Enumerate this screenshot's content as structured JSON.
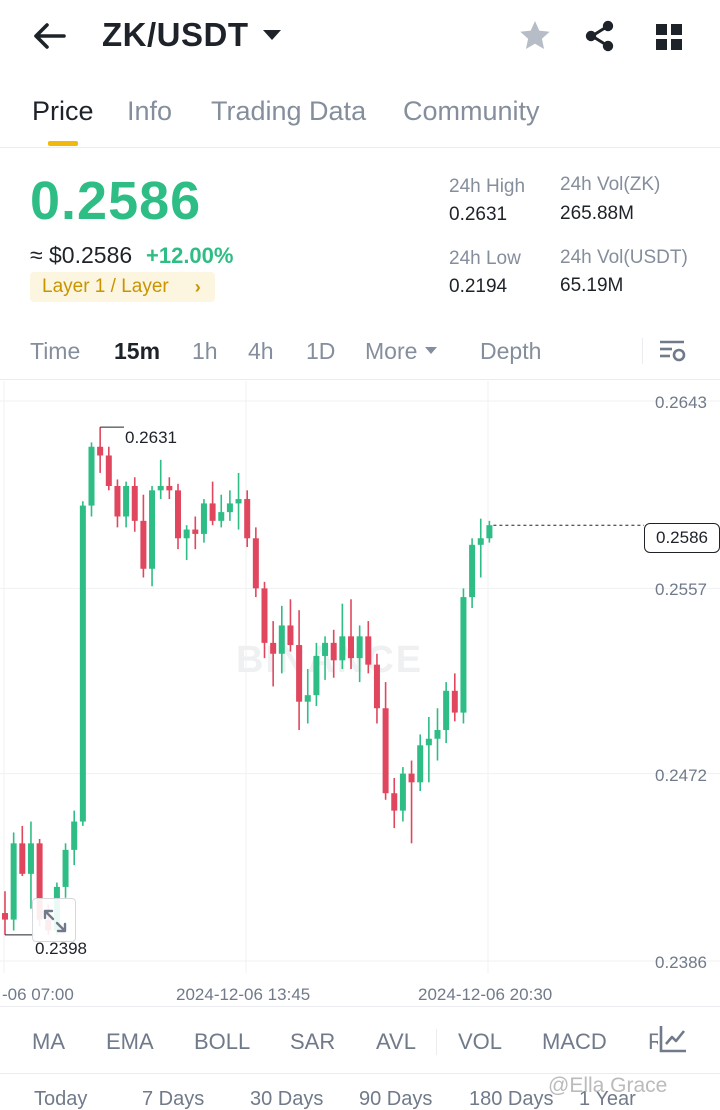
{
  "header": {
    "pair": "ZK/USDT",
    "icons": [
      "back-arrow-icon",
      "caret-down-icon",
      "star-icon",
      "share-icon",
      "grid-icon"
    ]
  },
  "tabs": [
    {
      "label": "Price",
      "active": true
    },
    {
      "label": "Info",
      "active": false
    },
    {
      "label": "Trading Data",
      "active": false
    },
    {
      "label": "Community",
      "active": false
    }
  ],
  "price": {
    "last": "0.2586",
    "usd": "≈ $0.2586",
    "change": "+12.00%",
    "tag": "Layer 1 / Layer",
    "tag_chevron": "›"
  },
  "stats": {
    "high_label": "24h High",
    "high_value": "0.2631",
    "low_label": "24h Low",
    "low_value": "0.2194",
    "vol_base_label": "24h Vol(ZK)",
    "vol_base_value": "265.88M",
    "vol_quote_label": "24h Vol(USDT)",
    "vol_quote_value": "65.19M"
  },
  "timebar": {
    "items": [
      {
        "label": "Time",
        "active": false
      },
      {
        "label": "15m",
        "active": true
      },
      {
        "label": "1h",
        "active": false
      },
      {
        "label": "4h",
        "active": false
      },
      {
        "label": "1D",
        "active": false
      },
      {
        "label": "More",
        "active": false
      },
      {
        "label": "Depth",
        "active": false
      }
    ]
  },
  "chart": {
    "y_labels": [
      "0.2643",
      "0.2557",
      "0.2472",
      "0.2386"
    ],
    "last_price": "0.2586",
    "high_marker": "0.2631",
    "low_marker": "0.2398",
    "watermark": "BINANCE",
    "x_labels": [
      "-06 07:00",
      "2024-12-06 13:45",
      "2024-12-06 20:30"
    ],
    "colors": {
      "up": "#2ebd85",
      "down": "#e0475e"
    }
  },
  "chart_data": {
    "type": "candlestick",
    "interval": "15m",
    "ylim": [
      0.2386,
      0.2643
    ],
    "ohlc": [
      [
        0.2408,
        0.2418,
        0.2398,
        0.2405
      ],
      [
        0.2405,
        0.2445,
        0.24,
        0.244
      ],
      [
        0.244,
        0.2448,
        0.2425,
        0.2426
      ],
      [
        0.2426,
        0.245,
        0.241,
        0.244
      ],
      [
        0.244,
        0.2442,
        0.2402,
        0.2405
      ],
      [
        0.2405,
        0.2412,
        0.2398,
        0.24
      ],
      [
        0.24,
        0.2422,
        0.2398,
        0.242
      ],
      [
        0.242,
        0.244,
        0.2415,
        0.2437
      ],
      [
        0.2437,
        0.2455,
        0.243,
        0.245
      ],
      [
        0.245,
        0.2597,
        0.2448,
        0.2595
      ],
      [
        0.2595,
        0.2624,
        0.259,
        0.2622
      ],
      [
        0.2622,
        0.2631,
        0.261,
        0.2618
      ],
      [
        0.2618,
        0.2622,
        0.2602,
        0.2604
      ],
      [
        0.2604,
        0.2607,
        0.2585,
        0.259
      ],
      [
        0.259,
        0.2606,
        0.2585,
        0.2604
      ],
      [
        0.2604,
        0.2608,
        0.2583,
        0.2588
      ],
      [
        0.2588,
        0.26,
        0.2562,
        0.2566
      ],
      [
        0.2566,
        0.2604,
        0.2558,
        0.2602
      ],
      [
        0.2602,
        0.2616,
        0.2598,
        0.2604
      ],
      [
        0.2604,
        0.2608,
        0.2598,
        0.2602
      ],
      [
        0.2602,
        0.2605,
        0.2575,
        0.258
      ],
      [
        0.258,
        0.2586,
        0.257,
        0.2584
      ],
      [
        0.2584,
        0.259,
        0.2575,
        0.2582
      ],
      [
        0.2582,
        0.2598,
        0.2578,
        0.2596
      ],
      [
        0.2596,
        0.2606,
        0.2586,
        0.2588
      ],
      [
        0.2588,
        0.26,
        0.2585,
        0.2592
      ],
      [
        0.2592,
        0.2602,
        0.2588,
        0.2596
      ],
      [
        0.2596,
        0.261,
        0.2584,
        0.2598
      ],
      [
        0.2598,
        0.2602,
        0.2576,
        0.258
      ],
      [
        0.258,
        0.2585,
        0.2553,
        0.2557
      ],
      [
        0.2557,
        0.256,
        0.2525,
        0.2532
      ],
      [
        0.2532,
        0.2542,
        0.2512,
        0.2527
      ],
      [
        0.2527,
        0.2549,
        0.2518,
        0.254
      ],
      [
        0.254,
        0.2552,
        0.2528,
        0.2531
      ],
      [
        0.2531,
        0.2547,
        0.2492,
        0.2505
      ],
      [
        0.2505,
        0.252,
        0.2495,
        0.2508
      ],
      [
        0.2508,
        0.2532,
        0.2503,
        0.2526
      ],
      [
        0.2526,
        0.2535,
        0.2515,
        0.2532
      ],
      [
        0.2532,
        0.2538,
        0.2516,
        0.2524
      ],
      [
        0.2524,
        0.255,
        0.252,
        0.2535
      ],
      [
        0.2535,
        0.2552,
        0.252,
        0.2525
      ],
      [
        0.2525,
        0.254,
        0.2514,
        0.2535
      ],
      [
        0.2535,
        0.2542,
        0.2518,
        0.2522
      ],
      [
        0.2522,
        0.2527,
        0.2495,
        0.2502
      ],
      [
        0.2502,
        0.2514,
        0.246,
        0.2463
      ],
      [
        0.2463,
        0.247,
        0.2447,
        0.2455
      ],
      [
        0.2455,
        0.2475,
        0.245,
        0.2472
      ],
      [
        0.2472,
        0.2478,
        0.244,
        0.2468
      ],
      [
        0.2468,
        0.249,
        0.2464,
        0.2485
      ],
      [
        0.2485,
        0.2498,
        0.2468,
        0.2488
      ],
      [
        0.2488,
        0.2502,
        0.2478,
        0.2492
      ],
      [
        0.2492,
        0.2514,
        0.2486,
        0.251
      ],
      [
        0.251,
        0.2518,
        0.2496,
        0.25
      ],
      [
        0.25,
        0.2557,
        0.2495,
        0.2553
      ],
      [
        0.2553,
        0.258,
        0.2548,
        0.2577
      ],
      [
        0.2577,
        0.2589,
        0.2562,
        0.258
      ],
      [
        0.258,
        0.2588,
        0.2578,
        0.2586
      ]
    ]
  },
  "indicators": [
    "MA",
    "EMA",
    "BOLL",
    "SAR",
    "AVL",
    "VOL",
    "MACD",
    "RSI"
  ],
  "periods": [
    "Today",
    "7 Days",
    "30 Days",
    "90 Days",
    "180 Days",
    "1 Year"
  ],
  "overlay": {
    "user_watermark": "@Ella Grace"
  }
}
